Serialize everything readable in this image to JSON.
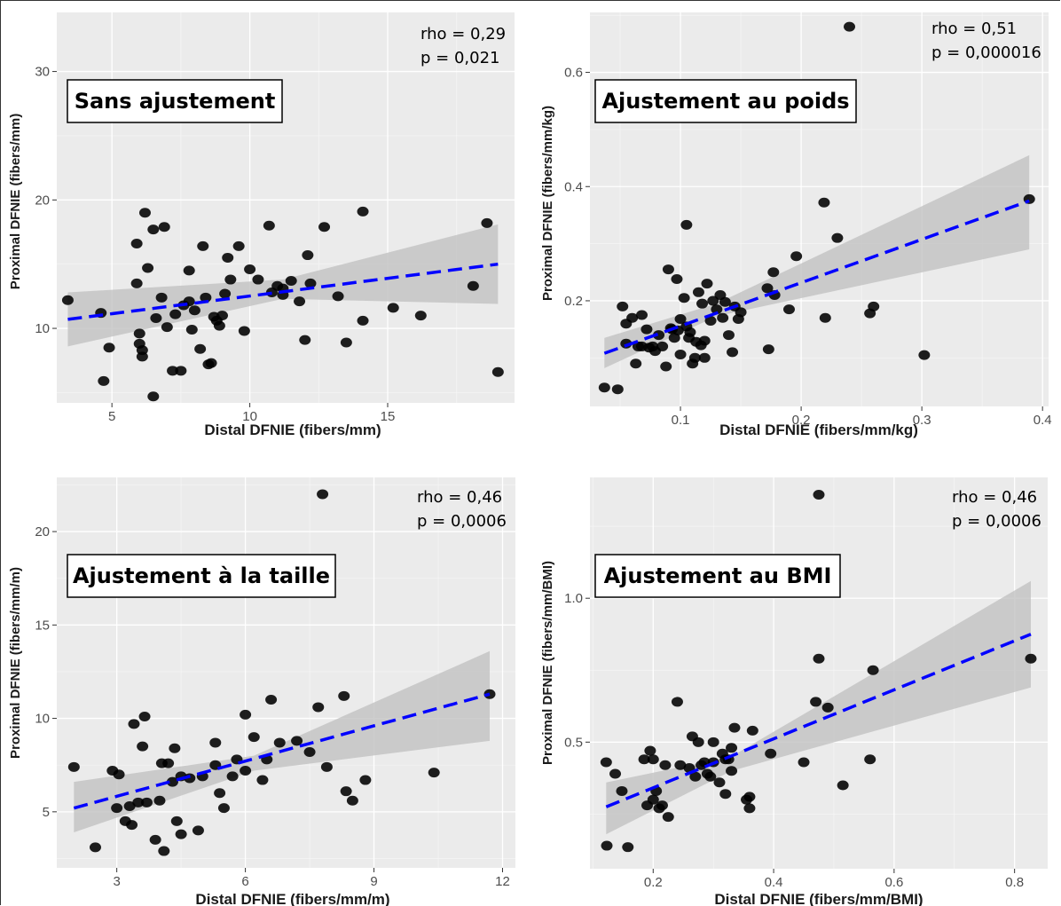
{
  "chart_data": [
    {
      "type": "scatter",
      "title": "Sans ajustement",
      "xlabel": "Distal DFNIE (fibers/mm)",
      "ylabel": "Proximal DFNIE (fibers/mm)",
      "xlim": [
        3.0,
        19.6
      ],
      "ylim": [
        4.2,
        34.6
      ],
      "xticks": [
        5,
        10,
        15
      ],
      "yticks": [
        10,
        20,
        30
      ],
      "xtick_labels": [
        "5",
        "10",
        "15"
      ],
      "ytick_labels": [
        "10",
        "20",
        "30"
      ],
      "stats": [
        "rho = 0,29",
        "p =  0,021"
      ],
      "fit": {
        "x": [
          3.4,
          19.0
        ],
        "y": [
          10.7,
          15.0
        ]
      },
      "band": {
        "x": [
          3.4,
          11.2,
          19.0
        ],
        "lower": [
          8.6,
          12.3,
          11.9
        ],
        "upper": [
          12.8,
          13.8,
          18.1
        ]
      },
      "x": [
        3.4,
        4.6,
        4.7,
        4.9,
        5.9,
        5.9,
        6.0,
        6.0,
        6.1,
        6.1,
        6.2,
        6.3,
        6.5,
        6.5,
        6.6,
        6.8,
        6.9,
        7.0,
        7.2,
        7.3,
        7.5,
        7.6,
        7.8,
        7.8,
        7.9,
        8.0,
        8.2,
        8.3,
        8.4,
        8.5,
        8.6,
        8.7,
        8.8,
        8.9,
        9.0,
        9.1,
        9.2,
        9.3,
        9.6,
        9.8,
        10.0,
        10.3,
        10.7,
        10.8,
        11.0,
        11.2,
        11.2,
        11.5,
        11.8,
        12.0,
        12.1,
        12.2,
        12.7,
        13.2,
        13.5,
        14.1,
        14.1,
        15.2,
        16.2,
        18.1,
        18.6,
        19.0
      ],
      "y": [
        12.2,
        11.2,
        5.9,
        8.5,
        16.6,
        13.5,
        9.6,
        8.8,
        8.3,
        7.8,
        19.0,
        14.7,
        17.7,
        4.7,
        10.8,
        12.4,
        17.9,
        10.1,
        6.7,
        11.1,
        6.7,
        11.8,
        14.5,
        12.1,
        9.9,
        11.4,
        8.4,
        16.4,
        12.4,
        7.2,
        7.3,
        10.9,
        10.6,
        10.2,
        11.0,
        12.7,
        15.5,
        13.8,
        16.4,
        9.8,
        14.6,
        13.8,
        18.0,
        12.8,
        13.3,
        12.6,
        13.1,
        13.7,
        12.1,
        9.1,
        15.7,
        13.5,
        17.9,
        12.5,
        8.9,
        19.1,
        10.6,
        11.6,
        11.0,
        13.3,
        18.2,
        6.6
      ]
    },
    {
      "type": "scatter",
      "title": "Ajustement au poids",
      "xlabel": "Distal DFNIE (fibers/mm/kg)",
      "ylabel": "Proximal DFNIE (fibers/mm/kg)",
      "xlim": [
        0.025,
        0.405
      ],
      "ylim": [
        0.015,
        0.705
      ],
      "xticks": [
        0.1,
        0.2,
        0.3,
        0.4
      ],
      "yticks": [
        0.2,
        0.4,
        0.6
      ],
      "xtick_labels": [
        "0.1",
        "0.2",
        "0.3",
        "0.4"
      ],
      "ytick_labels": [
        "0.2",
        "0.4",
        "0.6"
      ],
      "stats": [
        "rho = 0,51",
        "p =  0,000016"
      ],
      "fit": {
        "x": [
          0.037,
          0.389
        ],
        "y": [
          0.108,
          0.375
        ]
      },
      "band": {
        "x": [
          0.037,
          0.13,
          0.389
        ],
        "lower": [
          0.082,
          0.173,
          0.29
        ],
        "upper": [
          0.135,
          0.195,
          0.455
        ]
      },
      "x": [
        0.037,
        0.048,
        0.052,
        0.055,
        0.055,
        0.06,
        0.063,
        0.065,
        0.068,
        0.068,
        0.072,
        0.074,
        0.077,
        0.079,
        0.082,
        0.085,
        0.088,
        0.09,
        0.092,
        0.093,
        0.095,
        0.097,
        0.098,
        0.1,
        0.1,
        0.103,
        0.105,
        0.105,
        0.107,
        0.108,
        0.11,
        0.112,
        0.113,
        0.115,
        0.117,
        0.118,
        0.12,
        0.12,
        0.122,
        0.125,
        0.127,
        0.13,
        0.133,
        0.135,
        0.137,
        0.14,
        0.143,
        0.145,
        0.148,
        0.15,
        0.172,
        0.173,
        0.177,
        0.178,
        0.19,
        0.196,
        0.219,
        0.22,
        0.23,
        0.257,
        0.26,
        0.302,
        0.24,
        0.389
      ],
      "y": [
        0.048,
        0.045,
        0.19,
        0.16,
        0.125,
        0.17,
        0.09,
        0.12,
        0.175,
        0.12,
        0.15,
        0.118,
        0.12,
        0.112,
        0.14,
        0.12,
        0.085,
        0.255,
        0.152,
        0.15,
        0.135,
        0.238,
        0.148,
        0.168,
        0.106,
        0.205,
        0.155,
        0.333,
        0.135,
        0.145,
        0.09,
        0.1,
        0.128,
        0.215,
        0.122,
        0.195,
        0.1,
        0.13,
        0.23,
        0.165,
        0.2,
        0.185,
        0.21,
        0.17,
        0.198,
        0.14,
        0.11,
        0.19,
        0.168,
        0.18,
        0.222,
        0.115,
        0.25,
        0.21,
        0.185,
        0.278,
        0.372,
        0.17,
        0.31,
        0.178,
        0.19,
        0.105,
        0.68,
        0.378
      ]
    },
    {
      "type": "scatter",
      "title": "Ajustement à la taille",
      "xlabel": "Distal DFNIE (fibers/mm/m)",
      "ylabel": "Proximal DFNIE (fibers/mm/m)",
      "xlim": [
        1.6,
        12.3
      ],
      "ylim": [
        2.0,
        22.9
      ],
      "xticks": [
        3,
        6,
        9,
        12
      ],
      "yticks": [
        5,
        10,
        15,
        20
      ],
      "xtick_labels": [
        "3",
        "6",
        "9",
        "12"
      ],
      "ytick_labels": [
        "5",
        "10",
        "15",
        "20"
      ],
      "stats": [
        "rho = 0,46",
        "p =  0,0006"
      ],
      "fit": {
        "x": [
          2.0,
          11.7
        ],
        "y": [
          5.2,
          11.3
        ]
      },
      "band": {
        "x": [
          2.0,
          6.2,
          11.7
        ],
        "lower": [
          3.9,
          7.2,
          8.8
        ],
        "upper": [
          6.6,
          8.0,
          13.6
        ]
      },
      "x": [
        2.0,
        2.5,
        2.9,
        3.0,
        3.05,
        3.2,
        3.3,
        3.35,
        3.4,
        3.5,
        3.6,
        3.65,
        3.7,
        3.9,
        4.0,
        4.05,
        4.1,
        4.2,
        4.3,
        4.35,
        4.4,
        4.5,
        4.5,
        4.7,
        4.9,
        5.0,
        5.3,
        5.3,
        5.4,
        5.5,
        5.7,
        5.8,
        6.0,
        6.0,
        6.2,
        6.4,
        6.5,
        6.6,
        6.8,
        7.2,
        7.5,
        7.7,
        7.8,
        7.9,
        8.3,
        8.35,
        8.5,
        8.8,
        10.4,
        11.7
      ],
      "y": [
        7.4,
        3.1,
        7.2,
        5.2,
        7.0,
        4.5,
        5.3,
        4.3,
        9.7,
        5.5,
        8.5,
        10.1,
        5.5,
        3.5,
        5.6,
        7.6,
        2.9,
        7.6,
        6.6,
        8.4,
        4.5,
        3.8,
        6.9,
        6.8,
        4.0,
        6.9,
        8.7,
        7.5,
        6.0,
        5.2,
        6.9,
        7.8,
        7.2,
        10.2,
        9.0,
        6.7,
        7.8,
        11.0,
        8.7,
        8.8,
        8.2,
        10.6,
        22.0,
        7.4,
        11.2,
        6.1,
        5.6,
        6.7,
        7.1,
        11.3
      ]
    },
    {
      "type": "scatter",
      "title": "Ajustement au BMI",
      "xlabel": "Distal DFNIE (fibers/mm/BMI)",
      "ylabel": "Proximal DFNIE (fibers/mm/BMI)",
      "xlim": [
        0.095,
        0.855
      ],
      "ylim": [
        0.06,
        1.42
      ],
      "xticks": [
        0.2,
        0.4,
        0.6,
        0.8
      ],
      "yticks": [
        0.5,
        1.0
      ],
      "xtick_labels": [
        "0.2",
        "0.4",
        "0.6",
        "0.8"
      ],
      "ytick_labels": [
        "0.5",
        "1.0"
      ],
      "stats": [
        "rho = 0,46",
        "p =  0,0006"
      ],
      "fit": {
        "x": [
          0.122,
          0.827
        ],
        "y": [
          0.275,
          0.875
        ]
      },
      "band": {
        "x": [
          0.122,
          0.33,
          0.827
        ],
        "lower": [
          0.18,
          0.4,
          0.69
        ],
        "upper": [
          0.36,
          0.45,
          1.06
        ]
      },
      "x": [
        0.122,
        0.123,
        0.137,
        0.148,
        0.158,
        0.185,
        0.19,
        0.195,
        0.2,
        0.2,
        0.205,
        0.21,
        0.215,
        0.22,
        0.225,
        0.24,
        0.245,
        0.26,
        0.265,
        0.27,
        0.275,
        0.28,
        0.285,
        0.29,
        0.295,
        0.3,
        0.3,
        0.31,
        0.315,
        0.32,
        0.32,
        0.325,
        0.33,
        0.33,
        0.335,
        0.355,
        0.36,
        0.36,
        0.365,
        0.395,
        0.45,
        0.47,
        0.475,
        0.49,
        0.515,
        0.56,
        0.565,
        0.475,
        0.827
      ],
      "y": [
        0.43,
        0.14,
        0.39,
        0.33,
        0.135,
        0.44,
        0.28,
        0.47,
        0.44,
        0.3,
        0.33,
        0.27,
        0.28,
        0.42,
        0.24,
        0.64,
        0.42,
        0.41,
        0.52,
        0.38,
        0.5,
        0.42,
        0.43,
        0.39,
        0.38,
        0.5,
        0.43,
        0.36,
        0.46,
        0.32,
        0.44,
        0.44,
        0.48,
        0.4,
        0.55,
        0.3,
        0.27,
        0.31,
        0.54,
        0.46,
        0.43,
        0.64,
        0.79,
        0.62,
        0.35,
        0.44,
        0.75,
        1.36,
        0.79
      ]
    }
  ]
}
